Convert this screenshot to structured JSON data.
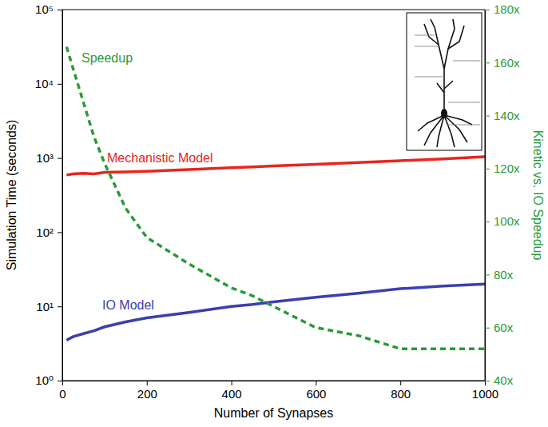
{
  "chart_data": {
    "type": "line",
    "x_label": "Number of Synapses",
    "y_label": "Simulation Time (seconds)",
    "y2_label": "Kinetic vs. IO Speedup",
    "log": "y",
    "grid": false,
    "xlim": [
      0,
      1000
    ],
    "xticks": [
      0,
      200,
      400,
      600,
      800,
      1000
    ],
    "ylim": [
      1,
      100000
    ],
    "yticks": [
      {
        "value": 1,
        "label": "10⁰"
      },
      {
        "value": 10,
        "label": "10¹"
      },
      {
        "value": 100,
        "label": "10²"
      },
      {
        "value": 1000,
        "label": "10³"
      },
      {
        "value": 10000,
        "label": "10⁴"
      },
      {
        "value": 100000,
        "label": "10⁵"
      }
    ],
    "y2lim": [
      40,
      180
    ],
    "y2ticks": [
      {
        "value": 40,
        "label": "40x"
      },
      {
        "value": 60,
        "label": "60x"
      },
      {
        "value": 80,
        "label": "80x"
      },
      {
        "value": 100,
        "label": "100x"
      },
      {
        "value": 120,
        "label": "120x"
      },
      {
        "value": 140,
        "label": "140x"
      },
      {
        "value": 160,
        "label": "160x"
      },
      {
        "value": 180,
        "label": "180x"
      }
    ],
    "x": [
      10,
      25,
      50,
      75,
      100,
      150,
      200,
      300,
      400,
      450,
      500,
      600,
      700,
      800,
      900,
      1000
    ],
    "series": [
      {
        "name": "Mechanistic Model",
        "color": "#e8251f",
        "line_style": "solid",
        "values": [
          590,
          610,
          620,
          610,
          640,
          650,
          660,
          700,
          740,
          760,
          780,
          820,
          870,
          920,
          970,
          1040
        ]
      },
      {
        "name": "IO Model",
        "color": "#3a3fb0",
        "line_style": "solid",
        "values": [
          3.5,
          3.9,
          4.3,
          4.7,
          5.3,
          6.2,
          7.0,
          8.3,
          10.0,
          10.6,
          11.5,
          13.3,
          15.0,
          17.3,
          18.8,
          20.0
        ]
      },
      {
        "name": "Speedup",
        "color": "#2a9a3a",
        "line_style": "dashed",
        "axis": "y2",
        "values": [
          166,
          158,
          145,
          132,
          122,
          105,
          94,
          84,
          75,
          72,
          68,
          60,
          57,
          52,
          52,
          52
        ]
      }
    ]
  }
}
